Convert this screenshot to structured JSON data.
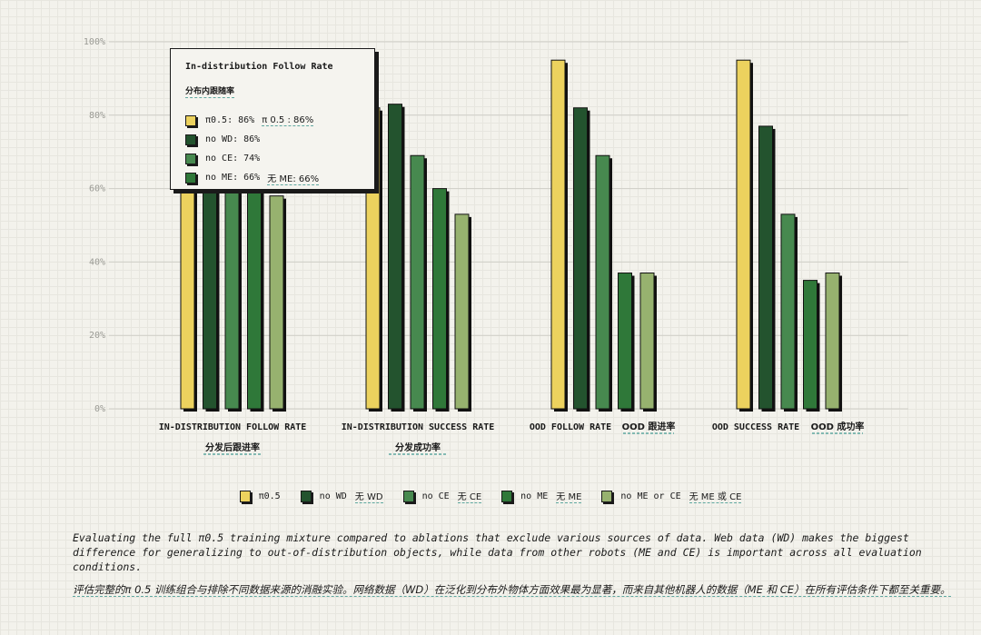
{
  "chart_data": {
    "type": "bar",
    "categories": [
      {
        "label": "IN-DISTRIBUTION FOLLOW RATE",
        "label_cn": "分发后跟进率"
      },
      {
        "label": "IN-DISTRIBUTION SUCCESS RATE",
        "label_cn": "分发成功率"
      },
      {
        "label": "OOD FOLLOW RATE",
        "label_cn": "OOD 跟进率"
      },
      {
        "label": "OOD SUCCESS RATE",
        "label_cn": "OOD 成功率"
      }
    ],
    "series": [
      {
        "name": "π0.5",
        "name_cn": "",
        "color": "#ecd25e",
        "values": [
          86,
          82,
          95,
          95
        ]
      },
      {
        "name": "no WD",
        "name_cn": "无 WD",
        "color": "#23532e",
        "values": [
          86,
          83,
          82,
          77
        ]
      },
      {
        "name": "no CE",
        "name_cn": "无 CE",
        "color": "#47894f",
        "values": [
          74,
          69,
          69,
          53
        ]
      },
      {
        "name": "no ME",
        "name_cn": "无 ME",
        "color": "#2f7839",
        "values": [
          66,
          60,
          37,
          35
        ]
      },
      {
        "name": "no ME or CE",
        "name_cn": "无 ME 或 CE",
        "color": "#97b26f",
        "values": [
          58,
          53,
          37,
          37
        ]
      }
    ],
    "ylim": [
      0,
      100
    ],
    "yticks": [
      "100%",
      "80%",
      "60%",
      "40%",
      "20%",
      "0%"
    ],
    "ytick_values": [
      100,
      80,
      60,
      40,
      20,
      0
    ]
  },
  "tooltip": {
    "title": "In-distribution Follow Rate",
    "title_cn": "分布内跟随率",
    "rows": [
      {
        "label": "π0.5: 86%",
        "cn": "π 0.5 : 86%",
        "color": "#ecd25e"
      },
      {
        "label": "no WD: 86%",
        "cn": "",
        "color": "#23532e"
      },
      {
        "label": "no CE: 74%",
        "cn": "",
        "color": "#47894f"
      },
      {
        "label": "no ME: 66%",
        "cn": "无 ME: 66%",
        "color": "#2f7839"
      }
    ]
  },
  "caption": {
    "en": "Evaluating the full π0.5 training mixture compared to ablations that exclude various sources of data. Web data (WD) makes the biggest difference for generalizing to out-of-distribution objects, while data from other robots (ME and CE) is important across all evaluation conditions.",
    "cn": "评估完整的π 0.5 训练组合与排除不同数据来源的消融实验。网络数据（WD）在泛化到分布外物体方面效果最为显著，而来自其他机器人的数据（ME 和 CE）在所有评估条件下都至关重要。"
  }
}
